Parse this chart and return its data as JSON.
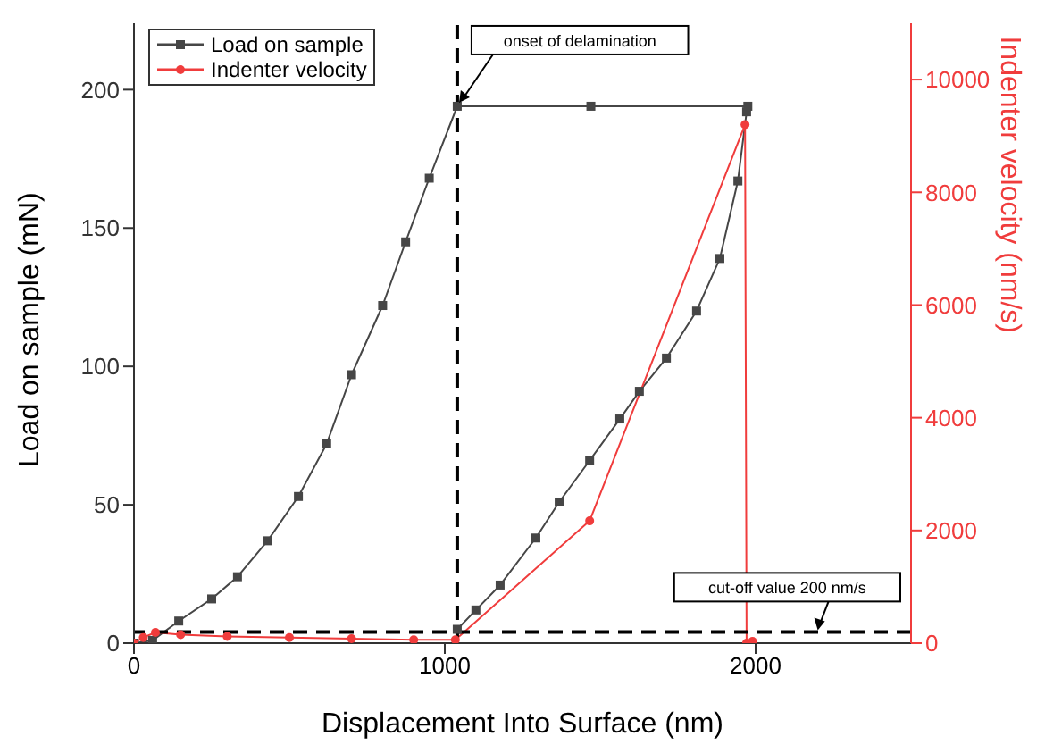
{
  "chart_data": {
    "type": "line",
    "xlabel": "Displacement Into Surface (nm)",
    "ylabel": "Load on sample (mN)",
    "y2label": "Indenter velocity (nm/s)",
    "series": [
      {
        "name": "Load on sample",
        "color": "#464646",
        "marker": "square",
        "x": [
          0,
          60,
          144,
          250,
          333,
          430,
          529,
          620,
          700,
          800,
          874,
          950,
          1040,
          1470,
          1975,
          null,
          1040,
          1100,
          1178,
          1293,
          1368,
          1466,
          1563,
          1626,
          1713,
          1810,
          1885,
          1943,
          1971
        ],
        "values": [
          0,
          1,
          8,
          16,
          24,
          37,
          53,
          72,
          97,
          122,
          145,
          168,
          194,
          194,
          194,
          null,
          5,
          12,
          21,
          38,
          51,
          66,
          81,
          91,
          103,
          120,
          139,
          167,
          192
        ]
      },
      {
        "name": "Indenter velocity",
        "color": "#f03c3c",
        "marker": "circle",
        "axis": "y2",
        "x": [
          0,
          30,
          69,
          150,
          300,
          500,
          700,
          900,
          1034,
          1466,
          1966,
          1971,
          1990
        ],
        "values": [
          0,
          100,
          190,
          150,
          120,
          100,
          80,
          60,
          60,
          2170,
          9200,
          0,
          30
        ]
      }
    ],
    "xlim": [
      0,
      2500
    ],
    "xticks": [
      0,
      1000,
      2000
    ],
    "ylim": [
      0,
      224
    ],
    "yticks": [
      0,
      50,
      100,
      150,
      200
    ],
    "y2lim": [
      0,
      11000
    ],
    "y2ticks": [
      0,
      2000,
      4000,
      6000,
      8000,
      10000
    ],
    "ref_lines": [
      {
        "axis": "x",
        "value": 1040,
        "color": "#000000",
        "line_style": "dashed"
      },
      {
        "axis": "y2",
        "value": 200,
        "label": "cut-off value 200 nm/s",
        "color": "#000000",
        "line_style": "dashed"
      }
    ],
    "annotations": [
      {
        "text": "onset of delamination",
        "x": 1040,
        "y": 194
      }
    ],
    "legend": "top left"
  }
}
